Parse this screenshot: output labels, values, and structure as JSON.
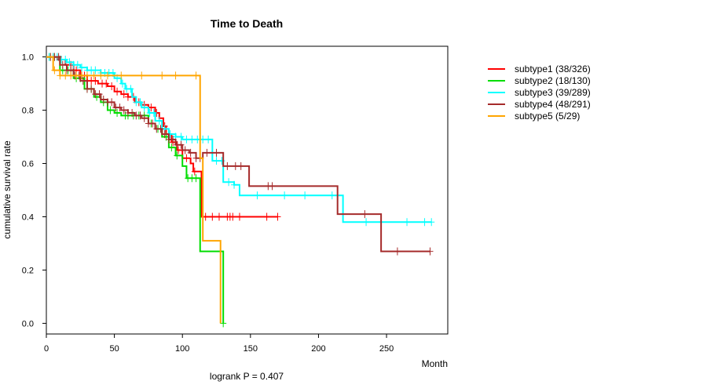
{
  "chart_data": {
    "type": "line",
    "title": "Time to Death",
    "xlabel": "Month",
    "ylabel": "cumulative survival rate",
    "annotation": "logrank P = 0.407",
    "xlim": [
      0,
      295
    ],
    "ylim": [
      -0.04,
      1.04
    ],
    "x_ticks": [
      0,
      50,
      100,
      150,
      200,
      250
    ],
    "y_ticks": [
      0.0,
      0.2,
      0.4,
      0.6,
      0.8,
      1.0
    ],
    "y_tick_labels": [
      "0.0",
      "0.2",
      "0.4",
      "0.6",
      "0.8",
      "1.0"
    ],
    "grid": false,
    "legend_position": "top-right (outside plot)",
    "series": [
      {
        "name": "subtype1 (38/326)",
        "color": "#ff0000",
        "steps": [
          [
            0,
            1.0
          ],
          [
            8,
            0.99
          ],
          [
            14,
            0.97
          ],
          [
            20,
            0.95
          ],
          [
            25,
            0.93
          ],
          [
            30,
            0.91
          ],
          [
            38,
            0.9
          ],
          [
            45,
            0.89
          ],
          [
            50,
            0.87
          ],
          [
            55,
            0.86
          ],
          [
            60,
            0.85
          ],
          [
            65,
            0.83
          ],
          [
            70,
            0.82
          ],
          [
            75,
            0.81
          ],
          [
            80,
            0.79
          ],
          [
            83,
            0.77
          ],
          [
            86,
            0.74
          ],
          [
            88,
            0.71
          ],
          [
            92,
            0.68
          ],
          [
            96,
            0.65
          ],
          [
            100,
            0.62
          ],
          [
            106,
            0.6
          ],
          [
            108,
            0.57
          ],
          [
            114,
            0.4
          ],
          [
            170,
            0.4
          ]
        ],
        "censor_x": [
          5,
          10,
          18,
          22,
          28,
          33,
          36,
          41,
          44,
          48,
          52,
          57,
          60,
          64,
          68,
          72,
          77,
          81,
          87,
          93,
          97,
          103,
          109,
          117,
          122,
          127,
          133,
          135,
          137,
          142,
          162,
          171
        ]
      },
      {
        "name": "subtype2 (18/130)",
        "color": "#00dd00",
        "steps": [
          [
            0,
            1.0
          ],
          [
            10,
            0.95
          ],
          [
            20,
            0.92
          ],
          [
            28,
            0.88
          ],
          [
            35,
            0.85
          ],
          [
            40,
            0.83
          ],
          [
            45,
            0.8
          ],
          [
            50,
            0.79
          ],
          [
            55,
            0.78
          ],
          [
            75,
            0.75
          ],
          [
            80,
            0.73
          ],
          [
            85,
            0.7
          ],
          [
            90,
            0.66
          ],
          [
            95,
            0.63
          ],
          [
            100,
            0.59
          ],
          [
            103,
            0.545
          ],
          [
            110,
            0.545
          ],
          [
            113,
            0.27
          ],
          [
            128,
            0.27
          ],
          [
            130,
            0.0
          ]
        ],
        "censor_x": [
          3,
          6,
          12,
          16,
          22,
          25,
          30,
          33,
          37,
          42,
          47,
          52,
          58,
          60,
          64,
          68,
          72,
          77,
          82,
          88,
          92,
          96,
          104,
          107,
          110,
          130
        ]
      },
      {
        "name": "subtype3 (39/289)",
        "color": "#00ffff",
        "steps": [
          [
            0,
            1.0
          ],
          [
            10,
            0.99
          ],
          [
            15,
            0.98
          ],
          [
            20,
            0.97
          ],
          [
            25,
            0.96
          ],
          [
            30,
            0.95
          ],
          [
            40,
            0.94
          ],
          [
            50,
            0.92
          ],
          [
            55,
            0.9
          ],
          [
            58,
            0.88
          ],
          [
            63,
            0.85
          ],
          [
            66,
            0.83
          ],
          [
            70,
            0.81
          ],
          [
            75,
            0.79
          ],
          [
            80,
            0.76
          ],
          [
            85,
            0.73
          ],
          [
            90,
            0.71
          ],
          [
            95,
            0.7
          ],
          [
            100,
            0.69
          ],
          [
            120,
            0.69
          ],
          [
            122,
            0.61
          ],
          [
            130,
            0.53
          ],
          [
            138,
            0.52
          ],
          [
            142,
            0.48
          ],
          [
            216,
            0.48
          ],
          [
            218,
            0.38
          ],
          [
            283,
            0.38
          ]
        ],
        "censor_x": [
          2,
          5,
          8,
          11,
          14,
          17,
          20,
          23,
          26,
          30,
          33,
          36,
          40,
          43,
          46,
          49,
          52,
          56,
          59,
          62,
          66,
          69,
          72,
          76,
          79,
          83,
          87,
          91,
          95,
          99,
          103,
          107,
          111,
          115,
          119,
          125,
          129,
          134,
          138,
          155,
          175,
          190,
          210,
          235,
          265,
          278,
          283
        ]
      },
      {
        "name": "subtype4 (48/291)",
        "color": "#a52a2a",
        "steps": [
          [
            0,
            1.0
          ],
          [
            10,
            0.97
          ],
          [
            15,
            0.95
          ],
          [
            20,
            0.93
          ],
          [
            25,
            0.91
          ],
          [
            30,
            0.88
          ],
          [
            35,
            0.86
          ],
          [
            40,
            0.84
          ],
          [
            45,
            0.83
          ],
          [
            50,
            0.81
          ],
          [
            55,
            0.8
          ],
          [
            60,
            0.79
          ],
          [
            65,
            0.78
          ],
          [
            70,
            0.77
          ],
          [
            75,
            0.75
          ],
          [
            80,
            0.73
          ],
          [
            85,
            0.71
          ],
          [
            90,
            0.69
          ],
          [
            95,
            0.67
          ],
          [
            100,
            0.65
          ],
          [
            105,
            0.64
          ],
          [
            110,
            0.62
          ],
          [
            115,
            0.64
          ],
          [
            128,
            0.64
          ],
          [
            130,
            0.59
          ],
          [
            147,
            0.59
          ],
          [
            149,
            0.515
          ],
          [
            213,
            0.515
          ],
          [
            214,
            0.41
          ],
          [
            245,
            0.41
          ],
          [
            246,
            0.27
          ],
          [
            282,
            0.27
          ]
        ],
        "censor_x": [
          3,
          6,
          9,
          12,
          15,
          18,
          21,
          24,
          27,
          30,
          33,
          36,
          39,
          42,
          45,
          48,
          51,
          54,
          57,
          60,
          63,
          66,
          69,
          72,
          75,
          78,
          81,
          84,
          87,
          90,
          93,
          96,
          99,
          102,
          106,
          110,
          113,
          118,
          125,
          133,
          139,
          143,
          163,
          166,
          234,
          258,
          282
        ]
      },
      {
        "name": "subtype5 (5/29)",
        "color": "#ffa500",
        "steps": [
          [
            0,
            1.0
          ],
          [
            5,
            0.95
          ],
          [
            10,
            0.93
          ],
          [
            112,
            0.93
          ],
          [
            113,
            0.62
          ],
          [
            115,
            0.31
          ],
          [
            127,
            0.31
          ],
          [
            128,
            0.0
          ]
        ],
        "censor_x": [
          6,
          10,
          14,
          18,
          22,
          26,
          30,
          35,
          40,
          45,
          55,
          70,
          85,
          95,
          110
        ]
      }
    ]
  }
}
